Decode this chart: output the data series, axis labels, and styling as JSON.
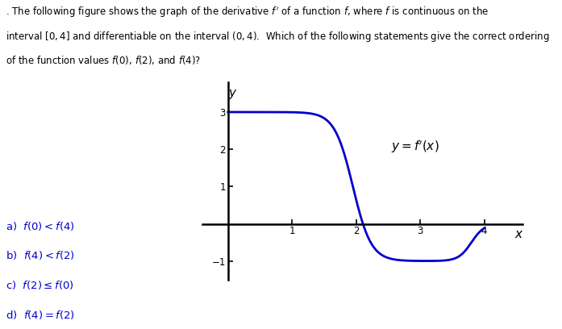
{
  "title_line1": ". The following figure shows the graph of the derivative $f'$ of a function $f$, where $f$ is continuous on the",
  "title_line2": "interval $[0, 4]$ and differentiable on the interval $(0, 4)$.  Which of the following statements give the correct ordering",
  "title_line3": "of the function values $f(0)$, $f(2)$, and $f(4)$?",
  "curve_color": "#0000CC",
  "curve_linewidth": 2.0,
  "axis_color": "#000000",
  "label_text": "$y = f'(x)$",
  "xlim": [
    -0.4,
    4.6
  ],
  "ylim": [
    -1.5,
    3.8
  ],
  "xticks": [
    1,
    2,
    3,
    4
  ],
  "yticks": [
    -1,
    1,
    2,
    3
  ],
  "answer_a": "a)  $f(0) < f(4)$",
  "answer_b": "b)  $f(4) < f(2)$",
  "answer_c": "c)  $f(2) \\leq f(0)$",
  "answer_d": "d)  $f(4) = f(2)$",
  "answer_color": "#0000CC",
  "figsize": [
    6.97,
    4.08
  ],
  "dpi": 100
}
